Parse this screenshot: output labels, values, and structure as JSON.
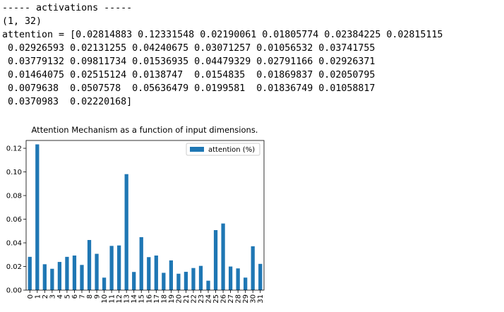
{
  "console": {
    "lines": [
      "----- activations -----",
      "(1, 32)",
      "attention = [0.02814883 0.12331548 0.02190061 0.01805774 0.02384225 0.02815115",
      " 0.02926593 0.02131255 0.04240675 0.03071257 0.01056532 0.03741755",
      " 0.03779132 0.09811734 0.01536935 0.04479329 0.02791166 0.02926371",
      " 0.01464075 0.02515124 0.0138747  0.0154835  0.01869837 0.02050795",
      " 0.0079638  0.0507578  0.05636479 0.0199581  0.01836749 0.01058817",
      " 0.0370983  0.02220168]"
    ]
  },
  "chart_data": {
    "type": "bar",
    "title": "Attention Mechanism as a function of input dimensions.",
    "categories": [
      "0",
      "1",
      "2",
      "3",
      "4",
      "5",
      "6",
      "7",
      "8",
      "9",
      "10",
      "11",
      "12",
      "13",
      "14",
      "15",
      "16",
      "17",
      "18",
      "19",
      "20",
      "21",
      "22",
      "23",
      "24",
      "25",
      "26",
      "27",
      "28",
      "29",
      "30",
      "31"
    ],
    "series": [
      {
        "name": "attention (%)",
        "color": "#1f77b4",
        "values": [
          0.02814883,
          0.12331548,
          0.02190061,
          0.01805774,
          0.02384225,
          0.02815115,
          0.02926593,
          0.02131255,
          0.04240675,
          0.03071257,
          0.01056532,
          0.03741755,
          0.03779132,
          0.09811734,
          0.01536935,
          0.04479329,
          0.02791166,
          0.02926371,
          0.01464075,
          0.02515124,
          0.0138747,
          0.0154835,
          0.01869837,
          0.02050795,
          0.0079638,
          0.0507578,
          0.05636479,
          0.0199581,
          0.01836749,
          0.01058817,
          0.0370983,
          0.02220168
        ]
      }
    ],
    "ylim": [
      0,
      0.1266
    ],
    "yticks": [
      {
        "value": 0,
        "label": "0.00"
      },
      {
        "value": 0.02,
        "label": "0.02"
      },
      {
        "value": 0.04,
        "label": "0.04"
      },
      {
        "value": 0.06,
        "label": "0.06"
      },
      {
        "value": 0.08,
        "label": "0.08"
      },
      {
        "value": 0.1,
        "label": "0.10"
      },
      {
        "value": 0.12,
        "label": "0.12"
      }
    ],
    "legend": "upper right"
  }
}
